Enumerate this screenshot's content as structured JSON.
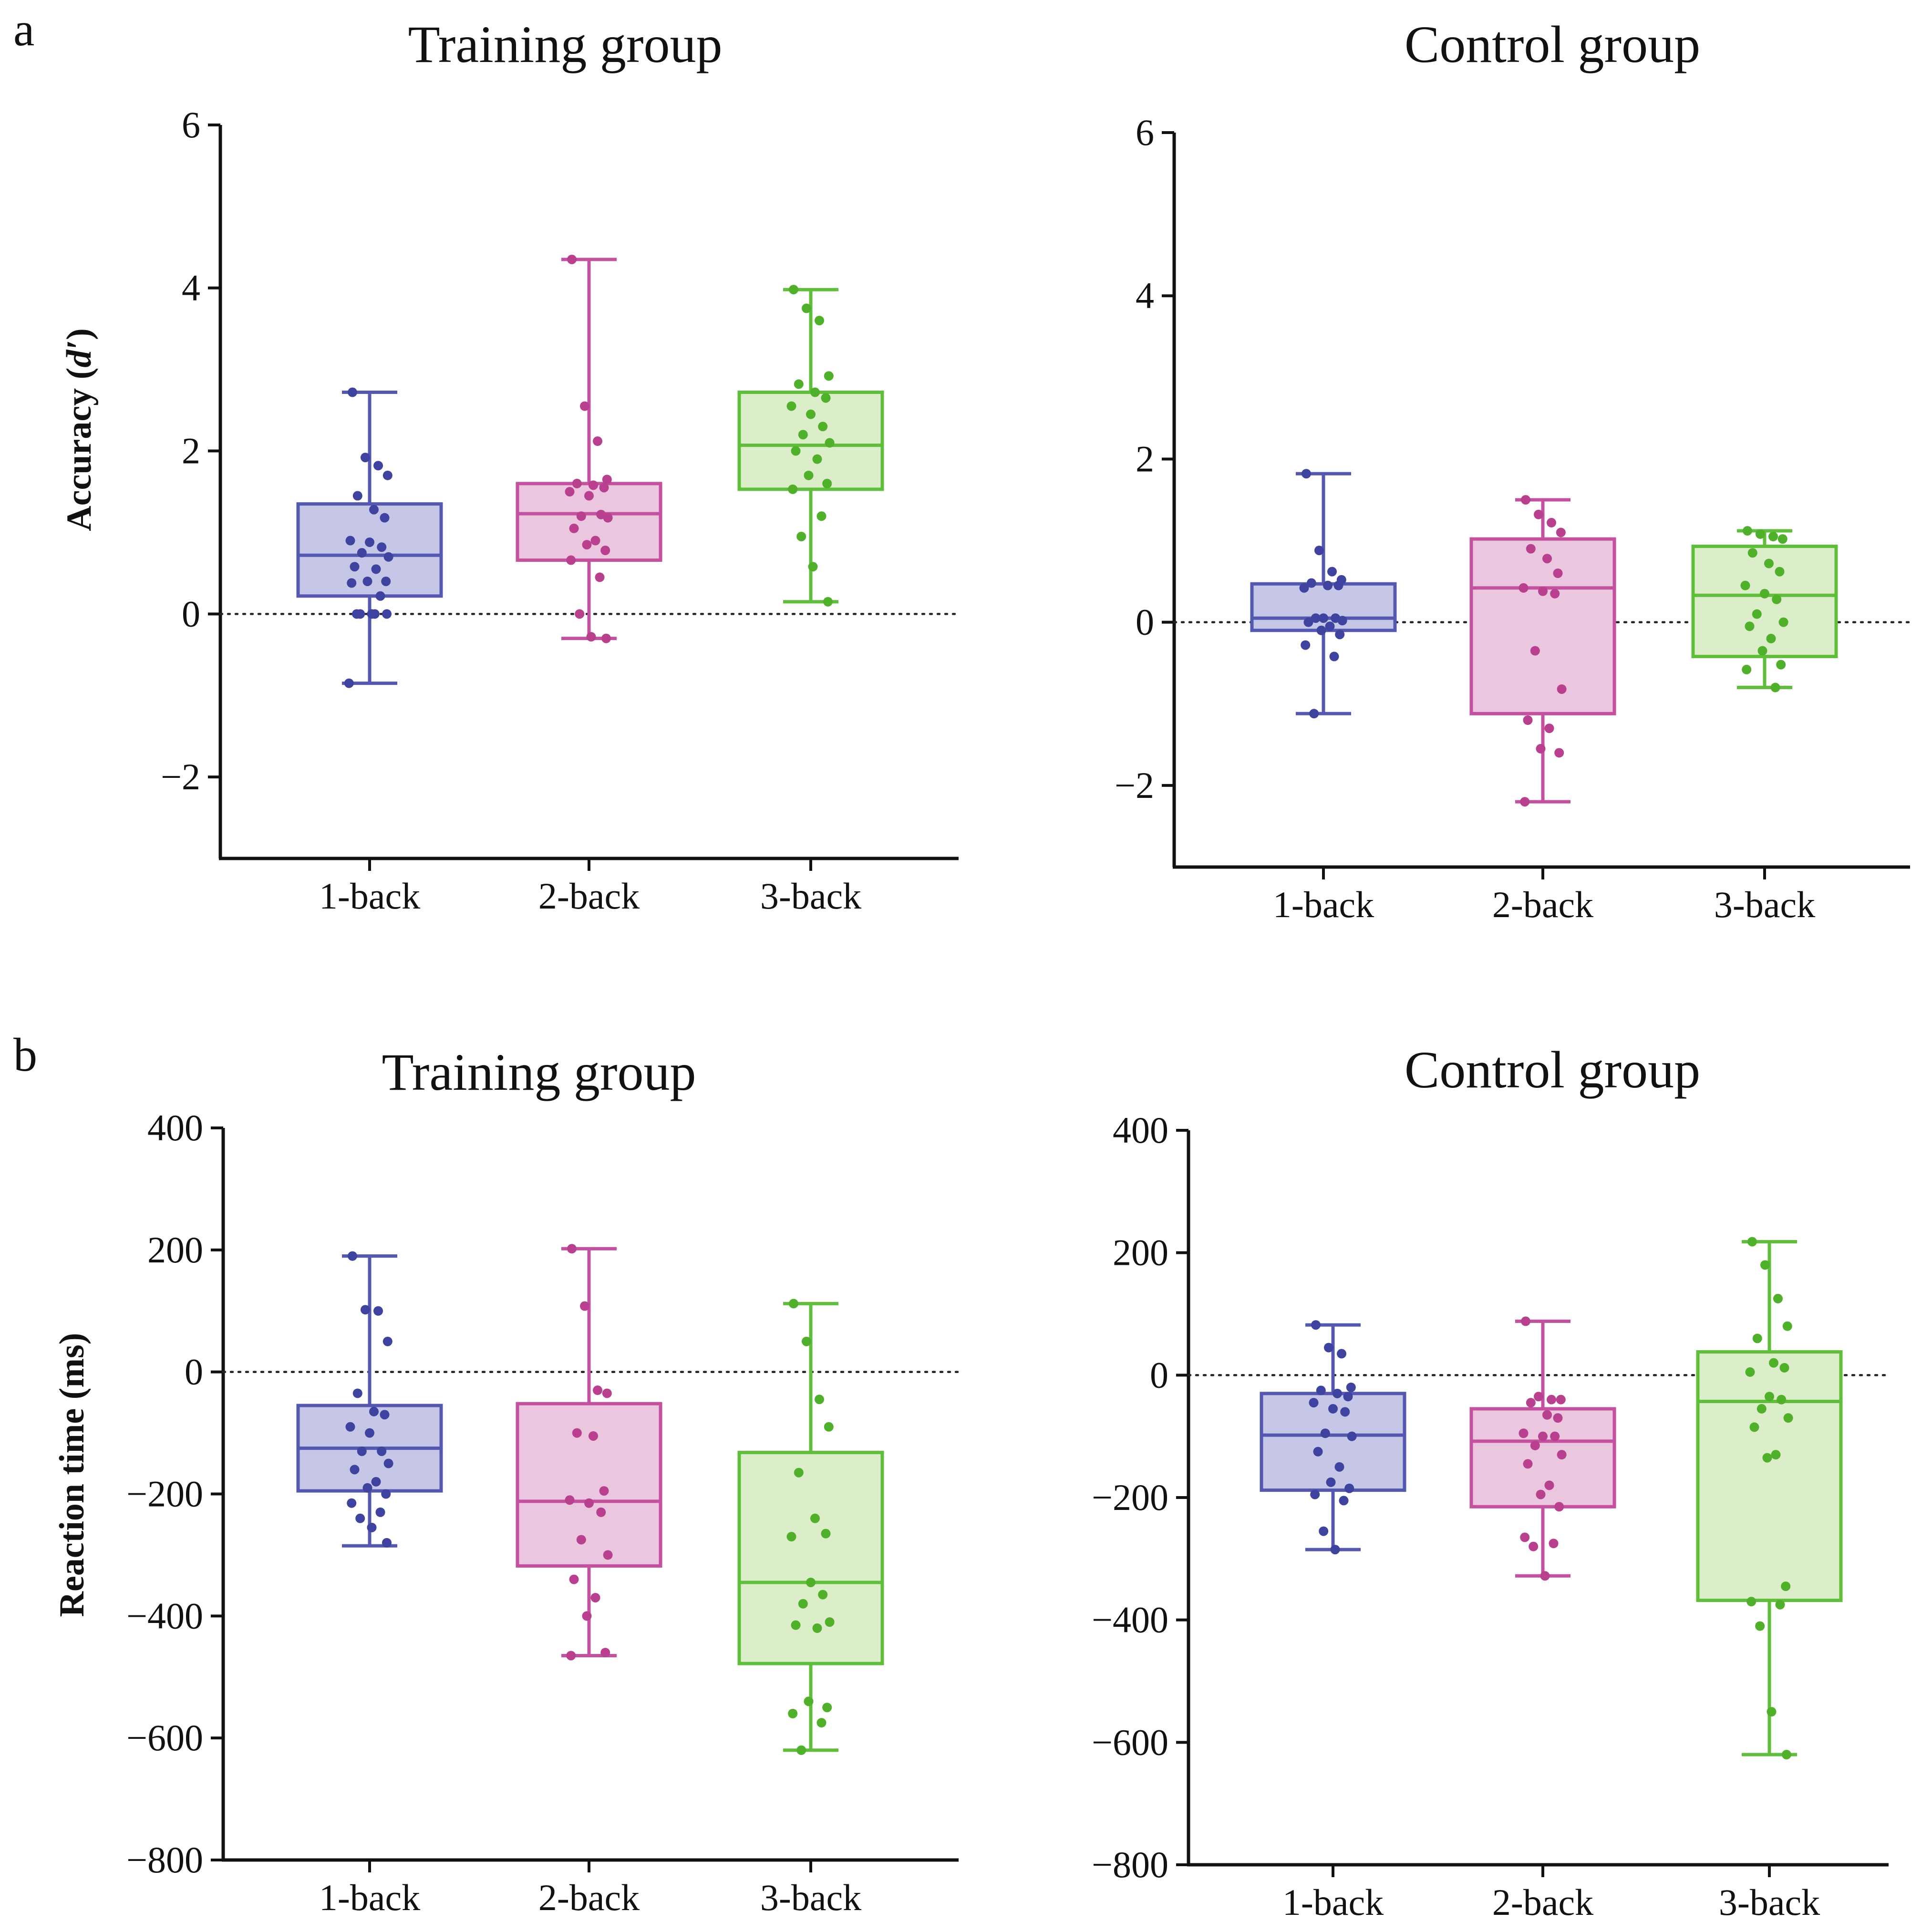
{
  "panel_labels": {
    "a": "a",
    "b": "b"
  },
  "colors": {
    "1-back": {
      "stroke": "#5458b0",
      "fill": "#c6c6e6",
      "dot": "#3e43a0"
    },
    "2-back": {
      "stroke": "#c4509f",
      "fill": "#eac7df",
      "dot": "#b8408f"
    },
    "3-back": {
      "stroke": "#5fbf3a",
      "fill": "#dcedca",
      "dot": "#4fb02a"
    },
    "axis": "#111111"
  },
  "chart_data": [
    {
      "id": "a-training",
      "type": "boxplot",
      "title": "Training group",
      "ylabel": "Accuracy (d′)",
      "ylabel_main": "Accuracy (",
      "ylabel_italic": "d′",
      "ylabel_close": ")",
      "ylim": [
        -3,
        6
      ],
      "yticks": [
        -2,
        0,
        2,
        4,
        6
      ],
      "ytick_labels": [
        "−2",
        "0",
        "2",
        "4",
        "6"
      ],
      "categories": [
        "1-back",
        "2-back",
        "3-back"
      ],
      "reference_line": 0,
      "series": [
        {
          "name": "1-back",
          "whisker_low": -0.85,
          "q1": 0.22,
          "median": 0.72,
          "q3": 1.35,
          "whisker_high": 2.72,
          "points": [
            2.72,
            1.92,
            1.82,
            1.7,
            1.45,
            1.28,
            1.18,
            0.9,
            0.88,
            0.82,
            0.75,
            0.7,
            0.58,
            0.55,
            0.4,
            0.4,
            0.38,
            0.22,
            0.0,
            0.0,
            0.0,
            0.0,
            0.0,
            -0.85
          ]
        },
        {
          "name": "2-back",
          "whisker_low": -0.3,
          "q1": 0.66,
          "median": 1.23,
          "q3": 1.6,
          "whisker_high": 4.35,
          "points": [
            4.35,
            2.55,
            2.12,
            1.65,
            1.6,
            1.58,
            1.55,
            1.5,
            1.45,
            1.22,
            1.2,
            1.18,
            1.05,
            0.9,
            0.85,
            0.78,
            0.66,
            0.45,
            0.0,
            -0.28,
            -0.3
          ]
        },
        {
          "name": "3-back",
          "whisker_low": 0.15,
          "q1": 1.53,
          "median": 2.07,
          "q3": 2.72,
          "whisker_high": 3.98,
          "points": [
            3.98,
            3.75,
            3.6,
            2.92,
            2.82,
            2.72,
            2.65,
            2.55,
            2.45,
            2.3,
            2.2,
            2.1,
            2.0,
            1.9,
            1.7,
            1.6,
            1.53,
            1.2,
            0.95,
            0.58,
            0.15
          ]
        }
      ]
    },
    {
      "id": "a-control",
      "type": "boxplot",
      "title": "Control group",
      "ylabel": "",
      "ylim": [
        -3,
        6
      ],
      "yticks": [
        -2,
        0,
        2,
        4,
        6
      ],
      "ytick_labels": [
        "−2",
        "0",
        "2",
        "4",
        "6"
      ],
      "categories": [
        "1-back",
        "2-back",
        "3-back"
      ],
      "reference_line": 0,
      "series": [
        {
          "name": "1-back",
          "whisker_low": -1.12,
          "q1": -0.1,
          "median": 0.05,
          "q3": 0.47,
          "whisker_high": 1.82,
          "points": [
            1.82,
            0.88,
            0.62,
            0.52,
            0.48,
            0.45,
            0.45,
            0.42,
            0.05,
            0.05,
            0.05,
            0.02,
            0.0,
            -0.05,
            -0.1,
            -0.15,
            -0.28,
            -0.42,
            -1.12
          ]
        },
        {
          "name": "2-back",
          "whisker_low": -2.2,
          "q1": -1.12,
          "median": 0.42,
          "q3": 1.02,
          "whisker_high": 1.5,
          "points": [
            1.5,
            1.32,
            1.22,
            1.1,
            0.9,
            0.78,
            0.6,
            0.42,
            0.38,
            0.35,
            -0.35,
            -0.82,
            -1.2,
            -1.3,
            -1.55,
            -1.6,
            -2.2
          ]
        },
        {
          "name": "3-back",
          "whisker_low": -0.8,
          "q1": -0.42,
          "median": 0.33,
          "q3": 0.93,
          "whisker_high": 1.12,
          "points": [
            1.12,
            1.08,
            1.05,
            1.02,
            0.85,
            0.72,
            0.62,
            0.45,
            0.35,
            0.28,
            0.1,
            0.0,
            -0.05,
            -0.2,
            -0.35,
            -0.52,
            -0.58,
            -0.8
          ]
        }
      ]
    },
    {
      "id": "b-training",
      "type": "boxplot",
      "title": "Training group",
      "ylabel": "Reaction time (ms)",
      "ylim": [
        -800,
        400
      ],
      "yticks": [
        -800,
        -600,
        -400,
        -200,
        0,
        200,
        400
      ],
      "ytick_labels": [
        "−800",
        "−600",
        "−400",
        "−200",
        "0",
        "200",
        "400"
      ],
      "categories": [
        "1-back",
        "2-back",
        "3-back"
      ],
      "reference_line": 0,
      "series": [
        {
          "name": "1-back",
          "whisker_low": -285,
          "q1": -195,
          "median": -125,
          "q3": -55,
          "whisker_high": 190,
          "points": [
            190,
            102,
            100,
            50,
            -35,
            -65,
            -70,
            -90,
            -100,
            -130,
            -130,
            -150,
            -160,
            -180,
            -190,
            -200,
            -215,
            -230,
            -240,
            -255,
            -280
          ]
        },
        {
          "name": "2-back",
          "whisker_low": -465,
          "q1": -318,
          "median": -212,
          "q3": -52,
          "whisker_high": 202,
          "points": [
            202,
            108,
            -30,
            -35,
            -100,
            -105,
            -195,
            -210,
            -215,
            -230,
            -275,
            -300,
            -340,
            -370,
            -400,
            -460,
            -465
          ]
        },
        {
          "name": "3-back",
          "whisker_low": -620,
          "q1": -478,
          "median": -345,
          "q3": -132,
          "whisker_high": 112,
          "points": [
            112,
            50,
            -45,
            -90,
            -165,
            -240,
            -265,
            -270,
            -345,
            -365,
            -380,
            -410,
            -415,
            -420,
            -540,
            -550,
            -560,
            -575,
            -620
          ]
        }
      ]
    },
    {
      "id": "b-control",
      "type": "boxplot",
      "title": "Control group",
      "ylabel": "",
      "ylim": [
        -800,
        400
      ],
      "yticks": [
        -800,
        -600,
        -400,
        -200,
        0,
        200,
        400
      ],
      "ytick_labels": [
        "−800",
        "−600",
        "−400",
        "−200",
        "0",
        "200",
        "400"
      ],
      "categories": [
        "1-back",
        "2-back",
        "3-back"
      ],
      "reference_line": 0,
      "series": [
        {
          "name": "1-back",
          "whisker_low": -285,
          "q1": -188,
          "median": -98,
          "q3": -30,
          "whisker_high": 82,
          "points": [
            82,
            45,
            35,
            -20,
            -25,
            -30,
            -35,
            -45,
            -55,
            -60,
            -95,
            -100,
            -125,
            -150,
            -175,
            -185,
            -195,
            -205,
            -255,
            -285
          ]
        },
        {
          "name": "2-back",
          "whisker_low": -328,
          "q1": -215,
          "median": -108,
          "q3": -55,
          "whisker_high": 88,
          "points": [
            88,
            -35,
            -40,
            -40,
            -45,
            -65,
            -70,
            -95,
            -100,
            -100,
            -115,
            -130,
            -145,
            -180,
            -195,
            -215,
            -265,
            -275,
            -280,
            -328
          ]
        },
        {
          "name": "3-back",
          "whisker_low": -620,
          "q1": -368,
          "median": -43,
          "q3": 38,
          "whisker_high": 218,
          "points": [
            218,
            180,
            125,
            80,
            60,
            20,
            12,
            5,
            -35,
            -40,
            -55,
            -70,
            -85,
            -130,
            -135,
            -345,
            -370,
            -375,
            -410,
            -550,
            -620
          ]
        }
      ]
    }
  ]
}
